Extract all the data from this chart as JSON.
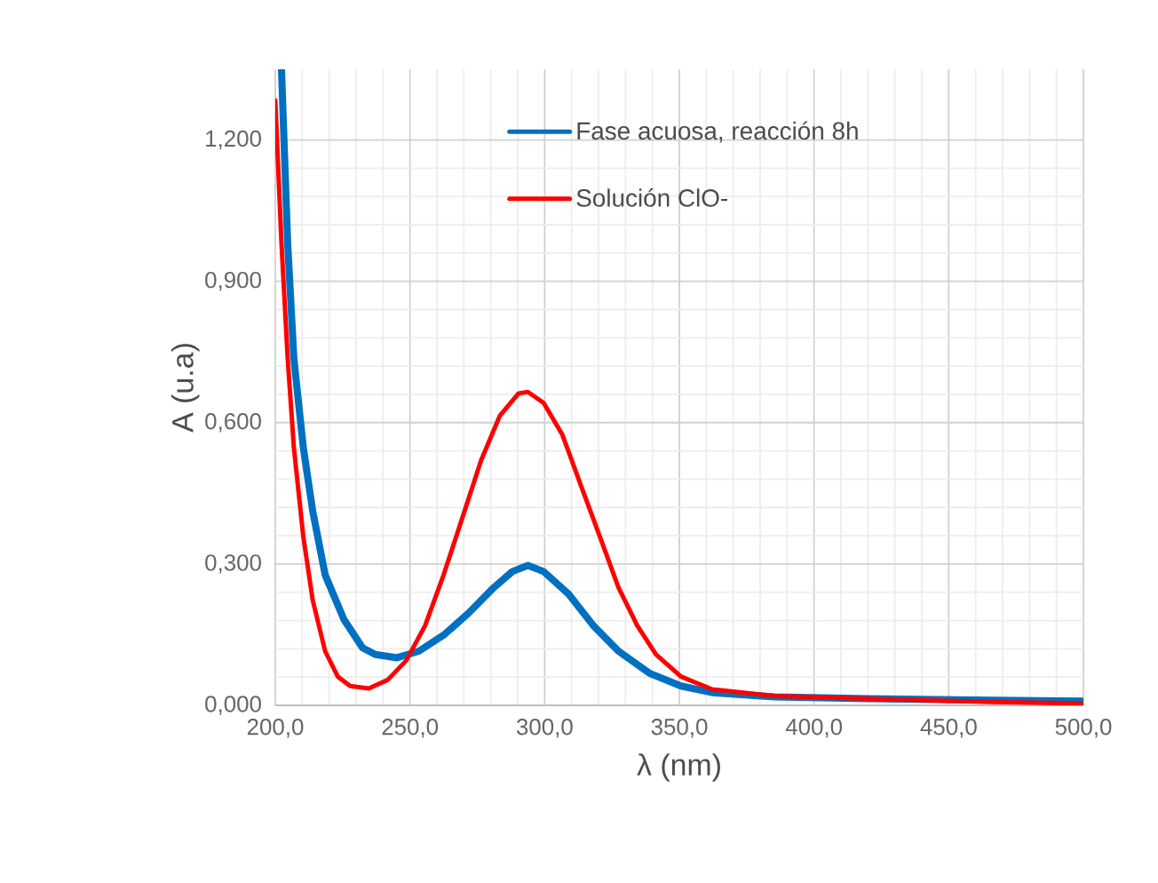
{
  "chart_data": {
    "type": "line",
    "xlabel": "λ (nm)",
    "ylabel": "A (u.a)",
    "xlim": [
      200,
      500
    ],
    "ylim": [
      0,
      1.35
    ],
    "xticks": [
      {
        "value": 200,
        "label": "200,0"
      },
      {
        "value": 250,
        "label": "250,0"
      },
      {
        "value": 300,
        "label": "300,0"
      },
      {
        "value": 350,
        "label": "350,0"
      },
      {
        "value": 400,
        "label": "400,0"
      },
      {
        "value": 450,
        "label": "450,0"
      },
      {
        "value": 500,
        "label": "500,0"
      }
    ],
    "yticks": [
      {
        "value": 0,
        "label": "0,000"
      },
      {
        "value": 0.3,
        "label": "0,300"
      },
      {
        "value": 0.6,
        "label": "0,600"
      },
      {
        "value": 0.9,
        "label": "0,900"
      },
      {
        "value": 1.2,
        "label": "1,200"
      }
    ],
    "grid": true,
    "legend": "top right",
    "marker": "none",
    "line_style": "solid",
    "series": [
      {
        "name": "Fase acuosa, reacción 8h",
        "color": "#0070c0",
        "x": [
          202.3,
          204.6,
          206.9,
          210.4,
          213.9,
          218.5,
          225.5,
          232.4,
          237.1,
          245.2,
          253.3,
          262.5,
          271.8,
          281.1,
          288.0,
          293.8,
          299.6,
          308.9,
          318.1,
          327.4,
          339.0,
          350.6,
          362.2,
          385.3,
          420.1,
          466.4,
          500
        ],
        "values": [
          1.35,
          0.98,
          0.736,
          0.547,
          0.412,
          0.277,
          0.182,
          0.122,
          0.108,
          0.101,
          0.115,
          0.149,
          0.196,
          0.25,
          0.284,
          0.297,
          0.284,
          0.236,
          0.169,
          0.115,
          0.068,
          0.041,
          0.027,
          0.018,
          0.014,
          0.011,
          0.009
        ]
      },
      {
        "name": "Solución ClO-",
        "color": "#ff0000",
        "x": [
          200,
          202.3,
          204.6,
          206.9,
          210.4,
          213.9,
          218.5,
          223.2,
          227.8,
          234.7,
          241.7,
          248.6,
          255.6,
          262.5,
          269.5,
          276.4,
          283.4,
          290.3,
          293.8,
          299.6,
          306.6,
          313.5,
          320.5,
          327.4,
          334.4,
          341.3,
          350.6,
          362.2,
          385.3,
          420.1,
          466.4,
          500
        ],
        "values": [
          1.284,
          0.98,
          0.736,
          0.547,
          0.358,
          0.223,
          0.115,
          0.061,
          0.041,
          0.036,
          0.054,
          0.095,
          0.169,
          0.277,
          0.399,
          0.52,
          0.615,
          0.662,
          0.665,
          0.642,
          0.574,
          0.466,
          0.358,
          0.25,
          0.169,
          0.108,
          0.061,
          0.034,
          0.02,
          0.014,
          0.007,
          0.004
        ]
      }
    ]
  }
}
